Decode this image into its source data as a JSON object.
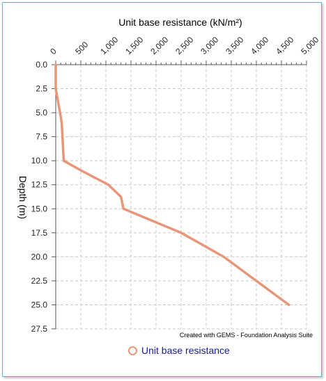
{
  "chart_data": {
    "type": "line",
    "title": "",
    "xlabel": "Unit base resistance  (kN/m²)",
    "ylabel": "Depth  (m)",
    "xlim": [
      0,
      5000
    ],
    "ylim": [
      0,
      27.5
    ],
    "y_inverted": true,
    "x_axis_position": "top",
    "x_ticks": [
      "0",
      "500",
      "1,000",
      "1,500",
      "2,000",
      "2,500",
      "3,000",
      "3,500",
      "4,000",
      "4,500",
      "5,000"
    ],
    "y_ticks": [
      "0.0",
      "2.5",
      "5.0",
      "7.5",
      "10.0",
      "12.5",
      "15.0",
      "17.5",
      "20.0",
      "22.5",
      "25.0",
      "27.5"
    ],
    "grid": true,
    "legend_position": "bottom",
    "series": [
      {
        "name": "Unit base resistance",
        "color": "#e8967a",
        "x": [
          0,
          0,
          120,
          160,
          500,
          1050,
          1300,
          1350,
          2500,
          3350,
          4650
        ],
        "y": [
          0,
          2.5,
          6.0,
          10.0,
          11.0,
          12.5,
          13.75,
          15.0,
          17.5,
          20.0,
          25.0
        ]
      }
    ],
    "credit": "Created with GEMS - Foundation Analysis Suite"
  }
}
